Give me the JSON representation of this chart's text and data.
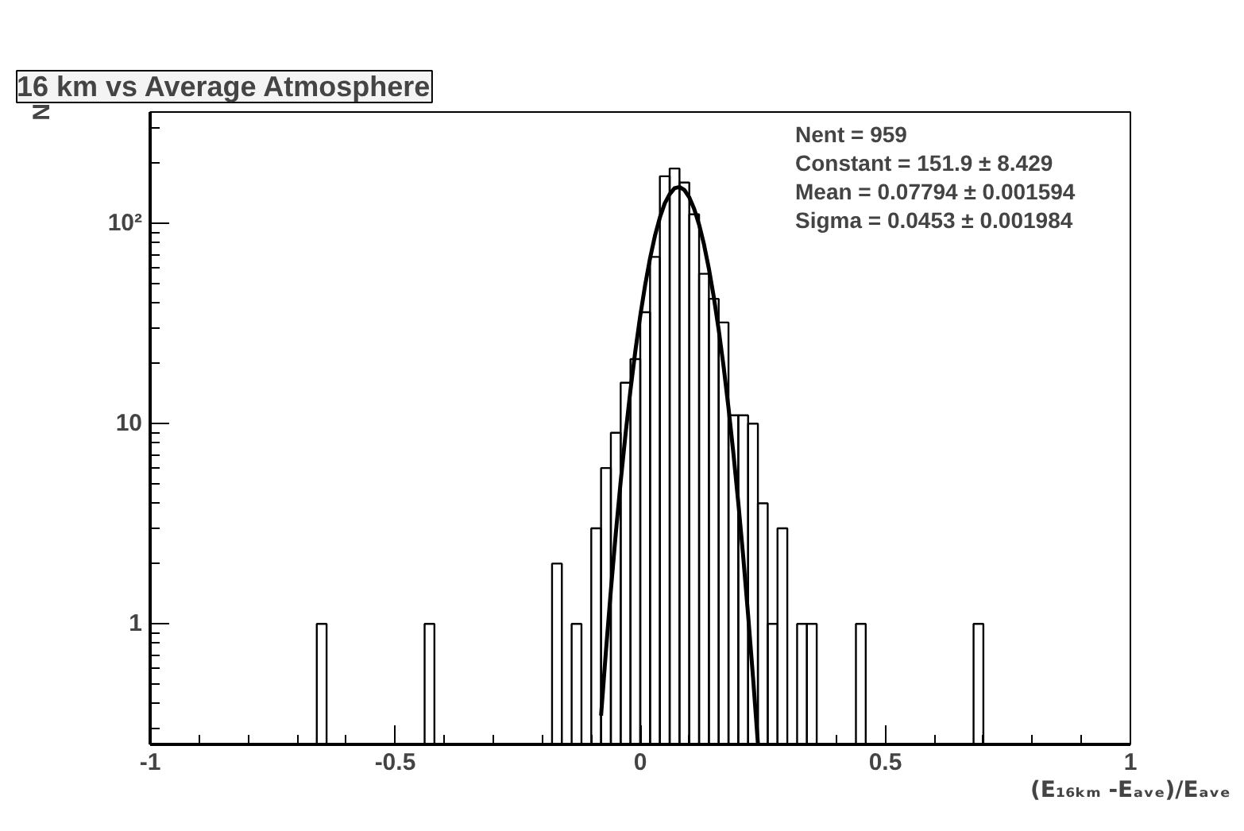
{
  "chart_data": {
    "type": "histogram",
    "title": "16 km vs Average Atmosphere",
    "xlabel": "(E₁₆ₖₘ -Eₐᵥₑ)/Eₐᵥₑ",
    "ylabel": "N",
    "annotations": [
      "Nent = 959",
      "Constant = 151.9 ± 8.429",
      "Mean     = 0.07794 ± 0.001594",
      "Sigma   = 0.0453 ± 0.001984"
    ],
    "series": [
      {
        "type": "histogram",
        "color": "#000000",
        "bins": [
          -1.0,
          -0.98,
          -0.96,
          -0.94,
          -0.92,
          -0.9,
          -0.88,
          -0.86,
          -0.84,
          -0.82,
          -0.8,
          -0.78,
          -0.76,
          -0.74,
          -0.72,
          -0.7,
          -0.68,
          -0.66,
          -0.64,
          -0.62,
          -0.6,
          -0.58,
          -0.56,
          -0.54,
          -0.52,
          -0.5,
          -0.48,
          -0.46,
          -0.44,
          -0.42,
          -0.4,
          -0.38,
          -0.36,
          -0.34,
          -0.32,
          -0.3,
          -0.28,
          -0.26,
          -0.24,
          -0.22,
          -0.2,
          -0.18,
          -0.16,
          -0.14,
          -0.12,
          -0.1,
          -0.08,
          -0.06,
          -0.04,
          -0.02,
          0.0,
          0.02,
          0.04,
          0.06,
          0.08,
          0.1,
          0.12,
          0.14,
          0.16,
          0.18,
          0.2,
          0.22,
          0.24,
          0.26,
          0.28,
          0.3,
          0.32,
          0.34,
          0.36,
          0.38,
          0.4,
          0.42,
          0.44,
          0.46,
          0.48,
          0.5,
          0.52,
          0.54,
          0.56,
          0.58,
          0.6,
          0.62,
          0.64,
          0.66,
          0.68,
          0.7,
          0.72,
          0.74,
          0.76,
          0.78,
          0.8,
          0.82,
          0.84,
          0.86,
          0.88,
          0.9,
          0.92,
          0.94,
          0.96,
          0.98,
          1.0
        ],
        "values": [
          null,
          null,
          null,
          null,
          null,
          null,
          null,
          null,
          null,
          null,
          null,
          null,
          null,
          null,
          null,
          null,
          null,
          1,
          null,
          null,
          null,
          null,
          null,
          null,
          null,
          null,
          null,
          null,
          1,
          null,
          null,
          null,
          null,
          null,
          null,
          null,
          null,
          null,
          null,
          null,
          null,
          2,
          null,
          1,
          null,
          3,
          6,
          9,
          16,
          21,
          36,
          68,
          172,
          188,
          160,
          111,
          56,
          42,
          32,
          11,
          11,
          10,
          4,
          1,
          3,
          null,
          1,
          1,
          null,
          null,
          null,
          null,
          1,
          null,
          null,
          null,
          null,
          null,
          null,
          null,
          null,
          null,
          null,
          null,
          1,
          null,
          null,
          null,
          null,
          null,
          null,
          null,
          null,
          null,
          null,
          null,
          null,
          null,
          null,
          null
        ]
      },
      {
        "type": "line",
        "color": "#000000",
        "x": [
          -0.08,
          -0.07,
          -0.06,
          -0.05,
          -0.04,
          -0.03,
          -0.02,
          -0.01,
          0.0,
          0.01,
          0.02,
          0.03,
          0.04,
          0.05,
          0.06,
          0.07,
          0.08,
          0.09,
          0.1,
          0.11,
          0.12,
          0.13,
          0.14,
          0.15,
          0.16,
          0.17,
          0.18,
          0.19,
          0.2,
          0.21,
          0.22,
          0.23,
          0.24
        ],
        "values": [
          0.348,
          0.734,
          1.47,
          2.82,
          5.13,
          8.89,
          14.7,
          23.1,
          34.6,
          49.3,
          67.0,
          86.8,
          107,
          126,
          140,
          150,
          152,
          147,
          135,
          118,
          98.7,
          78.5,
          59.4,
          42.9,
          29.4,
          19.3,
          12.0,
          7.12,
          4.03,
          2.17,
          1.11,
          0.543,
          0.253
        ]
      }
    ],
    "log": "y",
    "xlim": [
      -1,
      1
    ],
    "ylim": [
      0.25,
      360
    ],
    "xticks": [
      -1,
      -0.5,
      0,
      0.5,
      1
    ],
    "yticks": [
      1,
      10,
      {
        "value": 100,
        "label": "10²"
      }
    ],
    "grid": false
  }
}
